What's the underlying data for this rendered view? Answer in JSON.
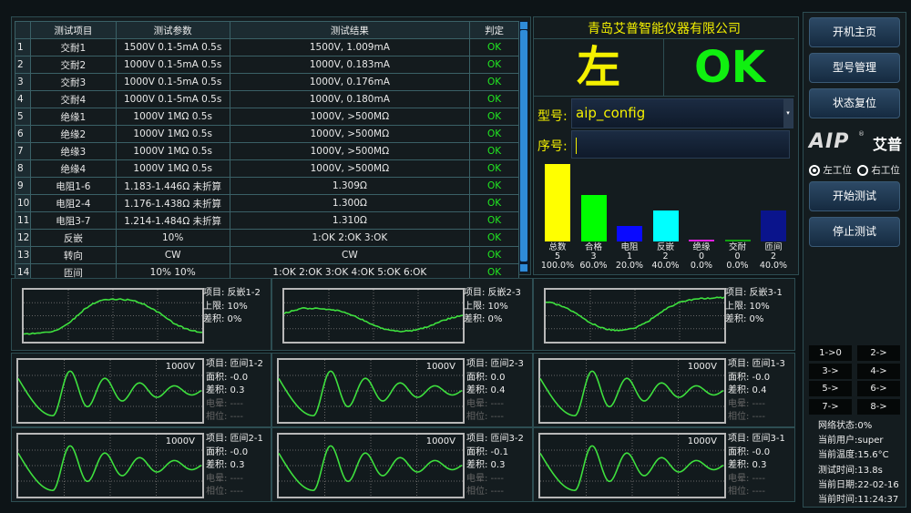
{
  "table": {
    "headers": [
      "",
      "测试项目",
      "测试参数",
      "测试结果",
      "判定"
    ],
    "rows": [
      [
        "1",
        "交耐1",
        "1500V 0.1-5mA 0.5s",
        "1500V, 1.009mA",
        "OK"
      ],
      [
        "2",
        "交耐2",
        "1000V 0.1-5mA 0.5s",
        "1000V, 0.183mA",
        "OK"
      ],
      [
        "3",
        "交耐3",
        "1000V 0.1-5mA 0.5s",
        "1000V, 0.176mA",
        "OK"
      ],
      [
        "4",
        "交耐4",
        "1000V 0.1-5mA 0.5s",
        "1000V, 0.180mA",
        "OK"
      ],
      [
        "5",
        "绝缘1",
        "1000V 1MΩ 0.5s",
        "1000V, >500MΩ",
        "OK"
      ],
      [
        "6",
        "绝缘2",
        "1000V 1MΩ 0.5s",
        "1000V, >500MΩ",
        "OK"
      ],
      [
        "7",
        "绝缘3",
        "1000V 1MΩ 0.5s",
        "1000V, >500MΩ",
        "OK"
      ],
      [
        "8",
        "绝缘4",
        "1000V 1MΩ 0.5s",
        "1000V, >500MΩ",
        "OK"
      ],
      [
        "9",
        "电阻1-6",
        "1.183-1.446Ω 未折算",
        "1.309Ω",
        "OK"
      ],
      [
        "10",
        "电阻2-4",
        "1.176-1.438Ω 未折算",
        "1.300Ω",
        "OK"
      ],
      [
        "11",
        "电阻3-7",
        "1.214-1.484Ω 未折算",
        "1.310Ω",
        "OK"
      ],
      [
        "12",
        "反嵌",
        "10%",
        "1:OK 2:OK 3:OK",
        "OK"
      ],
      [
        "13",
        "转向",
        "CW",
        "CW",
        "OK"
      ],
      [
        "14",
        "匝间",
        "10% 10%",
        "1:OK 2:OK 3:OK 4:OK 5:OK 6:OK",
        "OK"
      ]
    ]
  },
  "company": "青岛艾普智能仪器有限公司",
  "station_display": "左",
  "result_display": "OK",
  "model": {
    "label": "型号:",
    "value": "aip_config"
  },
  "serial": {
    "label": "序号:",
    "value": ""
  },
  "chart_data": {
    "type": "bar",
    "categories": [
      "总数",
      "合格",
      "电阻",
      "反嵌",
      "绝缘",
      "交耐",
      "匝间"
    ],
    "values": [
      5,
      3,
      1,
      2,
      0,
      0,
      2
    ],
    "percents": [
      "100.0%",
      "60.0%",
      "20.0%",
      "40.0%",
      "0.0%",
      "0.0%",
      "40.0%"
    ],
    "colors": [
      "#ffff00",
      "#00ff00",
      "#0a0aff",
      "#00ffff",
      "#e020e0",
      "#10a010",
      "#0a148c"
    ],
    "ylim": [
      0,
      5
    ]
  },
  "sidebar": {
    "buttons": [
      "开机主页",
      "型号管理",
      "状态复位"
    ],
    "logo": "AIP 艾普",
    "radios": [
      {
        "label": "左工位",
        "checked": true
      },
      {
        "label": "右工位",
        "checked": false
      }
    ],
    "actions": [
      "开始测试",
      "停止测试"
    ],
    "small_buttons": [
      "1->0",
      "2->",
      "3->",
      "4->",
      "5->",
      "6->",
      "7->",
      "8->"
    ],
    "status": [
      "网络状态:0%",
      "当前用户:super",
      "当前温度:15.6°C",
      "测试时间:13.8s",
      "当前日期:22-02-16",
      "当前时间:11:24:37"
    ]
  },
  "reverse_panels": [
    {
      "item": "项目: 反嵌1-2",
      "limit": "上限: 10%",
      "diff": "差积: 0%"
    },
    {
      "item": "项目: 反嵌2-3",
      "limit": "上限: 10%",
      "diff": "差积: 0%"
    },
    {
      "item": "项目: 反嵌3-1",
      "limit": "上限: 10%",
      "diff": "差积: 0%"
    }
  ],
  "surge_panels": [
    {
      "voltage": "1000V",
      "item": "项目: 匝间1-2",
      "area": "面积: -0.0",
      "diff": "差积: 0.3",
      "corona": "电晕: ----",
      "phase": "相位: ----"
    },
    {
      "voltage": "1000V",
      "item": "项目: 匝间2-3",
      "area": "面积: 0.0",
      "diff": "差积: 0.4",
      "corona": "电晕: ----",
      "phase": "相位: ----"
    },
    {
      "voltage": "1000V",
      "item": "项目: 匝间1-3",
      "area": "面积: -0.0",
      "diff": "差积: 0.4",
      "corona": "电晕: ----",
      "phase": "相位: ----"
    },
    {
      "voltage": "1000V",
      "item": "项目: 匝间2-1",
      "area": "面积: -0.0",
      "diff": "差积: 0.3",
      "corona": "电晕: ----",
      "phase": "相位: ----"
    },
    {
      "voltage": "1000V",
      "item": "项目: 匝间3-2",
      "area": "面积: -0.1",
      "diff": "差积: 0.3",
      "corona": "电晕: ----",
      "phase": "相位: ----"
    },
    {
      "voltage": "1000V",
      "item": "项目: 匝间3-1",
      "area": "面积: -0.0",
      "diff": "差积: 0.3",
      "corona": "电晕: ----",
      "phase": "相位: ----"
    }
  ],
  "colors": {
    "accent_yellow": "#f4f000",
    "ok_green": "#22e622",
    "wave_green": "#3ee03e"
  }
}
